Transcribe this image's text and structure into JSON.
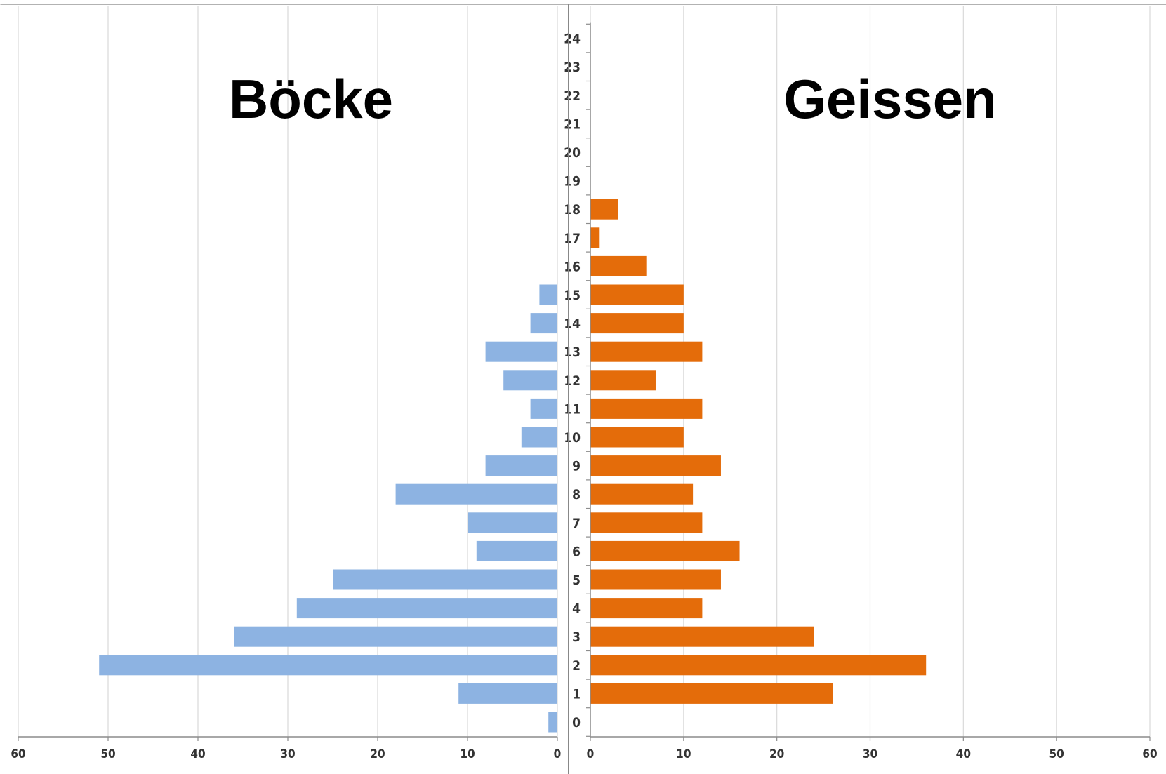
{
  "chart_data": {
    "type": "bar",
    "orientation": "horizontal",
    "layout": "population-pyramid",
    "categories": [
      "0",
      "1",
      "2",
      "3",
      "4",
      "5",
      "6",
      "7",
      "8",
      "9",
      "10",
      "11",
      "12",
      "13",
      "14",
      "15",
      "16",
      "17",
      "18",
      "19",
      "20",
      "21",
      "22",
      "23",
      "24"
    ],
    "series": [
      {
        "name": "Böcke",
        "side": "left",
        "color": "#8DB3E2",
        "values": [
          1,
          11,
          51,
          36,
          29,
          25,
          9,
          10,
          18,
          8,
          4,
          3,
          6,
          8,
          3,
          2,
          0,
          0,
          0,
          0,
          0,
          0,
          0,
          0,
          0
        ]
      },
      {
        "name": "Geissen",
        "side": "right",
        "color": "#E46C0A",
        "values": [
          0,
          26,
          36,
          24,
          12,
          14,
          16,
          12,
          11,
          14,
          10,
          12,
          7,
          12,
          10,
          10,
          6,
          1,
          3,
          0,
          0,
          0,
          0,
          0,
          0
        ]
      }
    ],
    "left_axis": {
      "xlim": [
        60,
        0
      ],
      "ticks": [
        "60",
        "50",
        "40",
        "30",
        "20",
        "10",
        "0"
      ]
    },
    "right_axis": {
      "xlim": [
        0,
        60
      ],
      "ticks": [
        "0",
        "10",
        "20",
        "30",
        "40",
        "50",
        "60"
      ]
    },
    "grid": true,
    "xlabel": "",
    "ylabel": ""
  }
}
